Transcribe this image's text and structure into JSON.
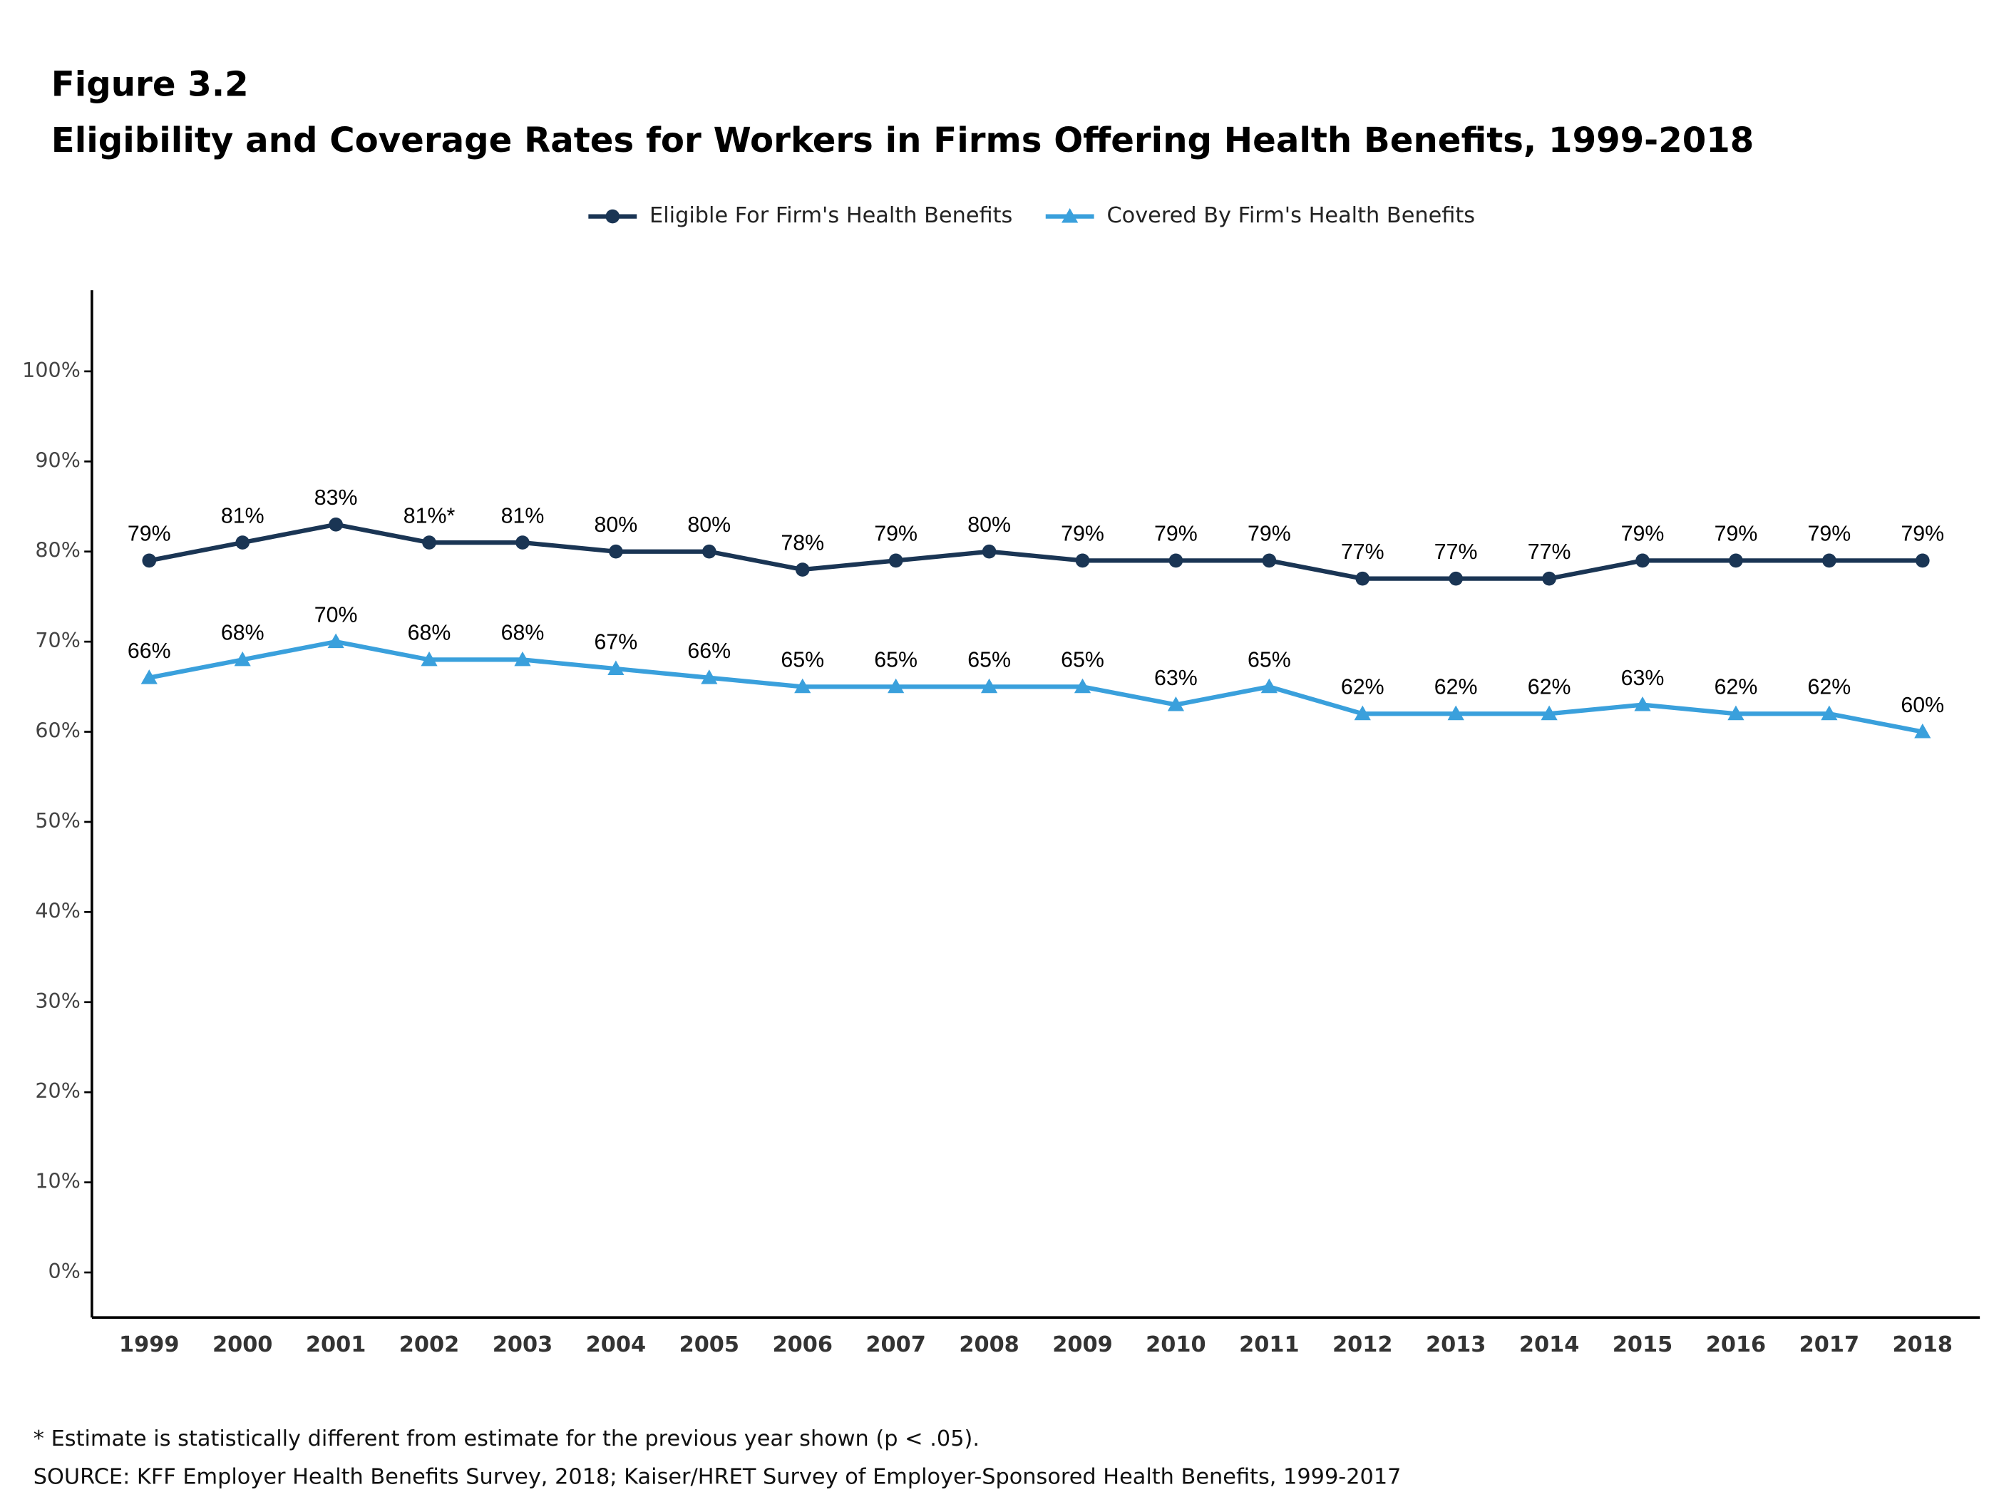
{
  "chart_data": {
    "type": "line",
    "figure_label": "Figure 3.2",
    "title": "Eligibility and Coverage Rates for Workers in Firms Offering Health Benefits, 1999-2018",
    "categories": [
      "1999",
      "2000",
      "2001",
      "2002",
      "2003",
      "2004",
      "2005",
      "2006",
      "2007",
      "2008",
      "2009",
      "2010",
      "2011",
      "2012",
      "2013",
      "2014",
      "2015",
      "2016",
      "2017",
      "2018"
    ],
    "series": [
      {
        "name": "Eligible For Firm's Health Benefits",
        "color": "#1a3554",
        "marker": "circle",
        "values": [
          79,
          81,
          83,
          81,
          81,
          80,
          80,
          78,
          79,
          80,
          79,
          79,
          79,
          77,
          77,
          77,
          79,
          79,
          79,
          79
        ],
        "value_labels": [
          "79%",
          "81%",
          "83%",
          "81%*",
          "81%",
          "80%",
          "80%",
          "78%",
          "79%",
          "80%",
          "79%",
          "79%",
          "79%",
          "77%",
          "77%",
          "77%",
          "79%",
          "79%",
          "79%",
          "79%"
        ]
      },
      {
        "name": "Covered By Firm's Health Benefits",
        "color": "#3aa0dc",
        "marker": "triangle",
        "values": [
          66,
          68,
          70,
          68,
          68,
          67,
          66,
          65,
          65,
          65,
          65,
          63,
          65,
          62,
          62,
          62,
          63,
          62,
          62,
          60
        ],
        "value_labels": [
          "66%",
          "68%",
          "70%",
          "68%",
          "68%",
          "67%",
          "66%",
          "65%",
          "65%",
          "65%",
          "65%",
          "63%",
          "65%",
          "62%",
          "62%",
          "62%",
          "63%",
          "62%",
          "62%",
          "60%"
        ]
      }
    ],
    "ylim": [
      -5,
      109
    ],
    "yticks": [
      {
        "value": 0,
        "label": "0%"
      },
      {
        "value": 10,
        "label": "10%"
      },
      {
        "value": 20,
        "label": "20%"
      },
      {
        "value": 30,
        "label": "30%"
      },
      {
        "value": 40,
        "label": "40%"
      },
      {
        "value": 50,
        "label": "50%"
      },
      {
        "value": 60,
        "label": "60%"
      },
      {
        "value": 70,
        "label": "70%"
      },
      {
        "value": 80,
        "label": "80%"
      },
      {
        "value": 90,
        "label": "90%"
      },
      {
        "value": 100,
        "label": "100%"
      }
    ],
    "grid": false,
    "legend": "top",
    "footnote": "* Estimate is statistically different from estimate for the previous year shown (p < .05).",
    "source": "SOURCE: KFF Employer Health Benefits Survey, 2018; Kaiser/HRET Survey of Employer-Sponsored Health Benefits, 1999-2017"
  }
}
